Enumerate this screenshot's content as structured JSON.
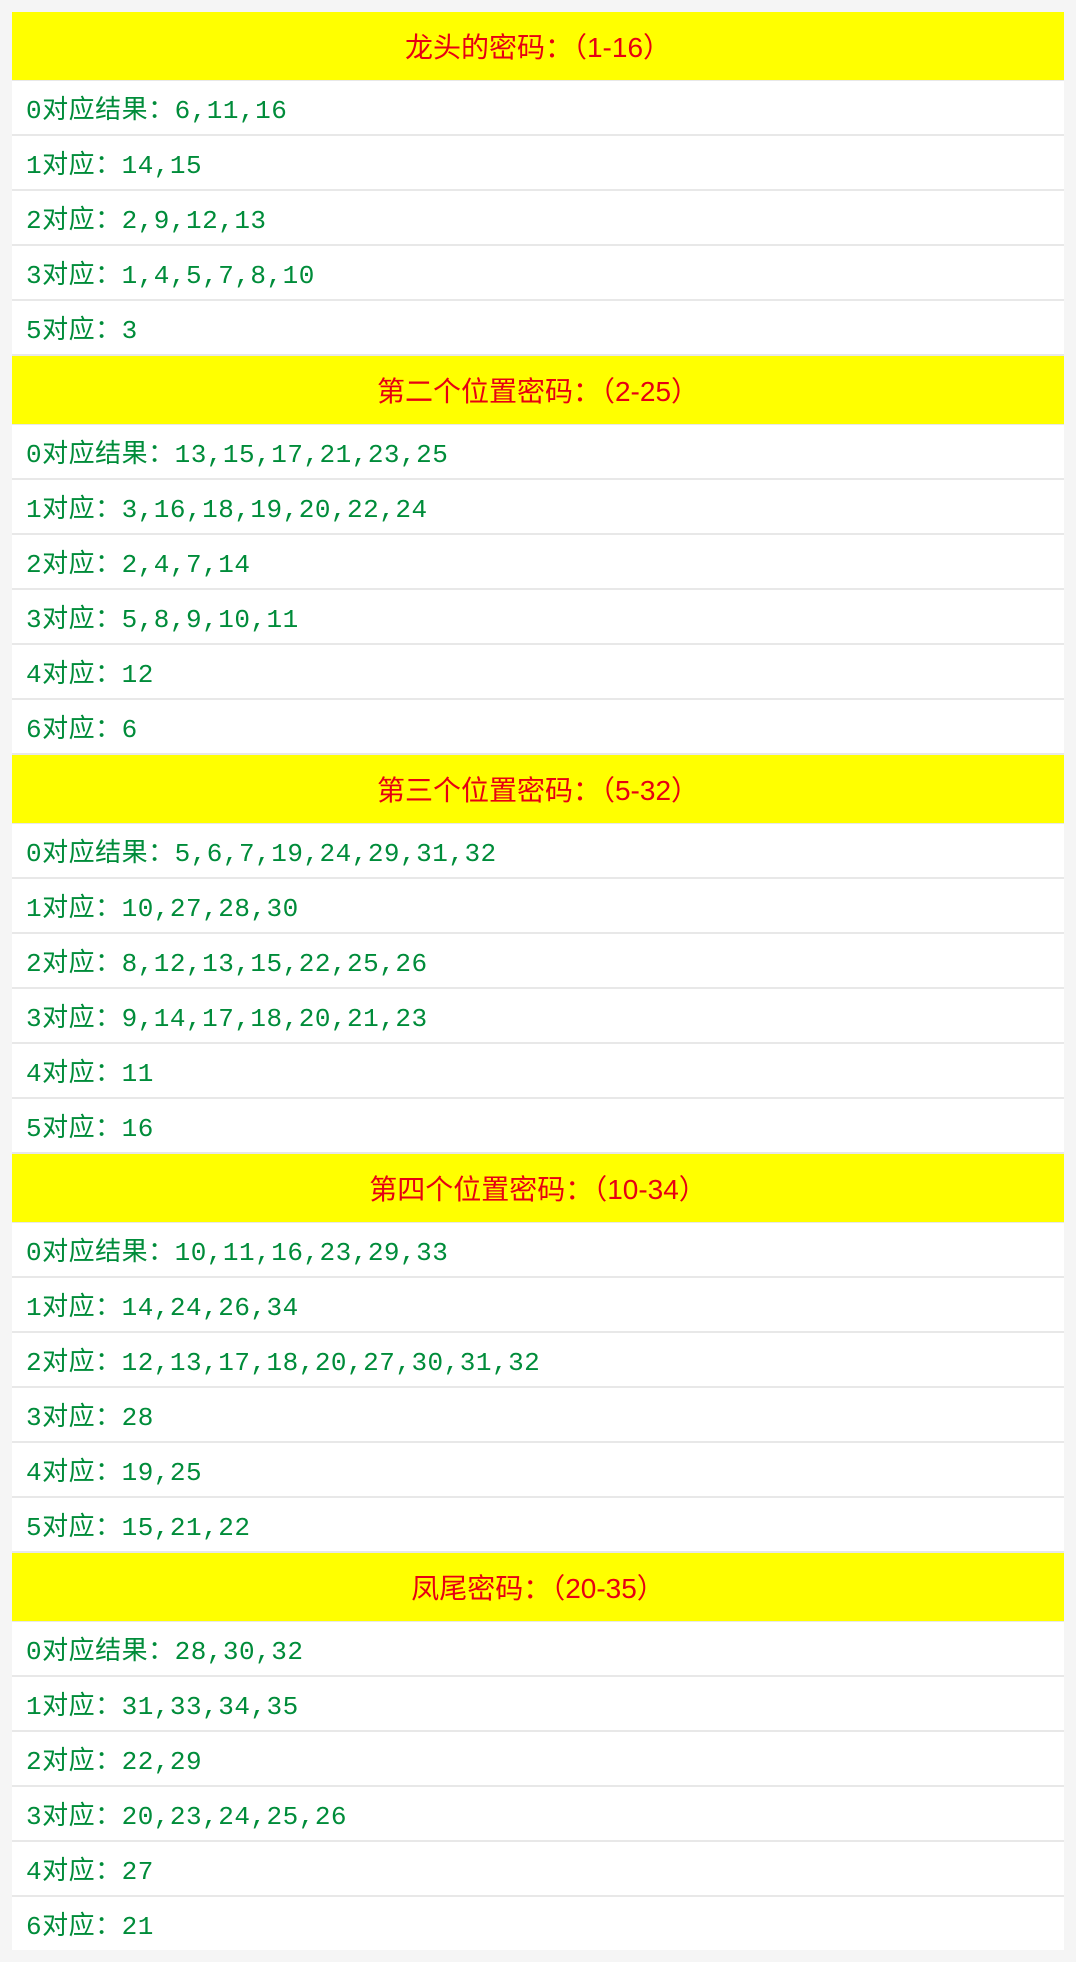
{
  "styles": {
    "header_bg": "#ffff00",
    "header_color": "#e60012",
    "row_bg": "#ffffff",
    "row_color": "#008c3a",
    "border_color": "#e8e8e8",
    "header_fontsize": 28,
    "row_fontsize": 26
  },
  "sections": [
    {
      "title": "龙头的密码：（1-16）",
      "rows": [
        "0对应结果：6,11,16",
        "1对应：14,15",
        "2对应：2,9,12,13",
        "3对应：1,4,5,7,8,10",
        "5对应：3"
      ]
    },
    {
      "title": "第二个位置密码：（2-25）",
      "rows": [
        "0对应结果：13,15,17,21,23,25",
        "1对应：3,16,18,19,20,22,24",
        "2对应：2,4,7,14",
        "3对应：5,8,9,10,11",
        "4对应：12",
        "6对应：6"
      ]
    },
    {
      "title": "第三个位置密码：（5-32）",
      "rows": [
        "0对应结果：5,6,7,19,24,29,31,32",
        "1对应：10,27,28,30",
        "2对应：8,12,13,15,22,25,26",
        "3对应：9,14,17,18,20,21,23",
        "4对应：11",
        "5对应：16"
      ]
    },
    {
      "title": "第四个位置密码：（10-34）",
      "rows": [
        "0对应结果：10,11,16,23,29,33",
        "1对应：14,24,26,34",
        "2对应：12,13,17,18,20,27,30,31,32",
        "3对应：28",
        "4对应：19,25",
        "5对应：15,21,22"
      ]
    },
    {
      "title": "凤尾密码：（20-35）",
      "rows": [
        "0对应结果：28,30,32",
        "1对应：31,33,34,35",
        "2对应：22,29",
        "3对应：20,23,24,25,26",
        "4对应：27",
        "6对应：21"
      ]
    }
  ]
}
